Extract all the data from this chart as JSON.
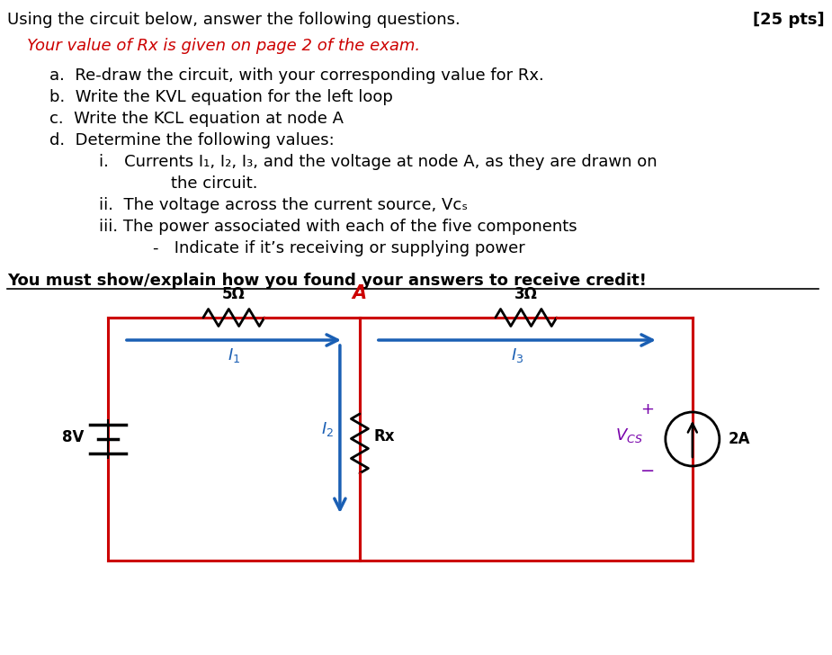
{
  "title_line1": "Using the circuit below, answer the following questions.",
  "title_pts": "[25 pts]",
  "subtitle": "Your value of Rx is given on page 2 of the exam.",
  "bold_line": "You must show/explain how you found your answers to receive credit!",
  "bg_color": "#ffffff",
  "text_color": "#000000",
  "red_color": "#cc0000",
  "circuit_red": "#cc0000",
  "circuit_blue": "#1a5fb4",
  "purple_color": "#7700aa"
}
